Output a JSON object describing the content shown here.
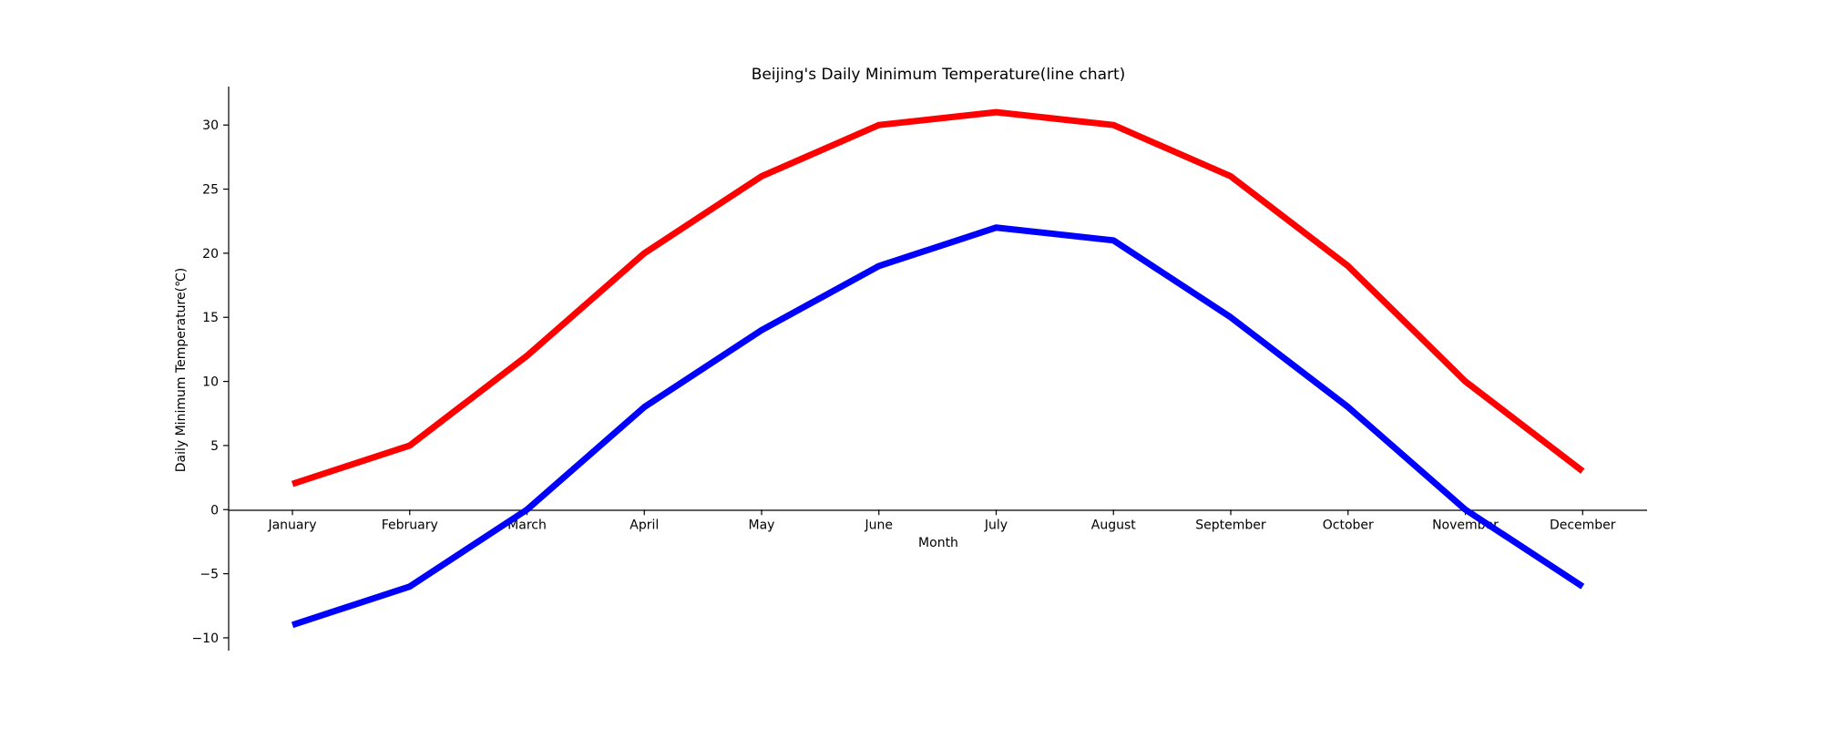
{
  "chart_data": {
    "type": "line",
    "title": "Beijing's Daily Minimum Temperature(line chart)",
    "xlabel": "Month",
    "ylabel": "Daily Minimum Temperature(℃)",
    "categories": [
      "January",
      "February",
      "March",
      "April",
      "May",
      "June",
      "July",
      "August",
      "September",
      "October",
      "November",
      "December"
    ],
    "ylim": [
      -11,
      33
    ],
    "yticks": [
      -10,
      -5,
      0,
      5,
      10,
      15,
      20,
      25,
      30
    ],
    "ytick_labels": [
      "−10",
      "−5",
      "0",
      "5",
      "10",
      "15",
      "20",
      "25",
      "30"
    ],
    "grid": false,
    "series": [
      {
        "color": "#ff0000",
        "values": [
          2,
          5,
          12,
          20,
          26,
          30,
          31,
          30,
          26,
          19,
          10,
          3
        ]
      },
      {
        "color": "#0000ff",
        "values": [
          -9,
          -6,
          0,
          8,
          14,
          19,
          22,
          21,
          15,
          8,
          0,
          -6
        ]
      }
    ]
  }
}
